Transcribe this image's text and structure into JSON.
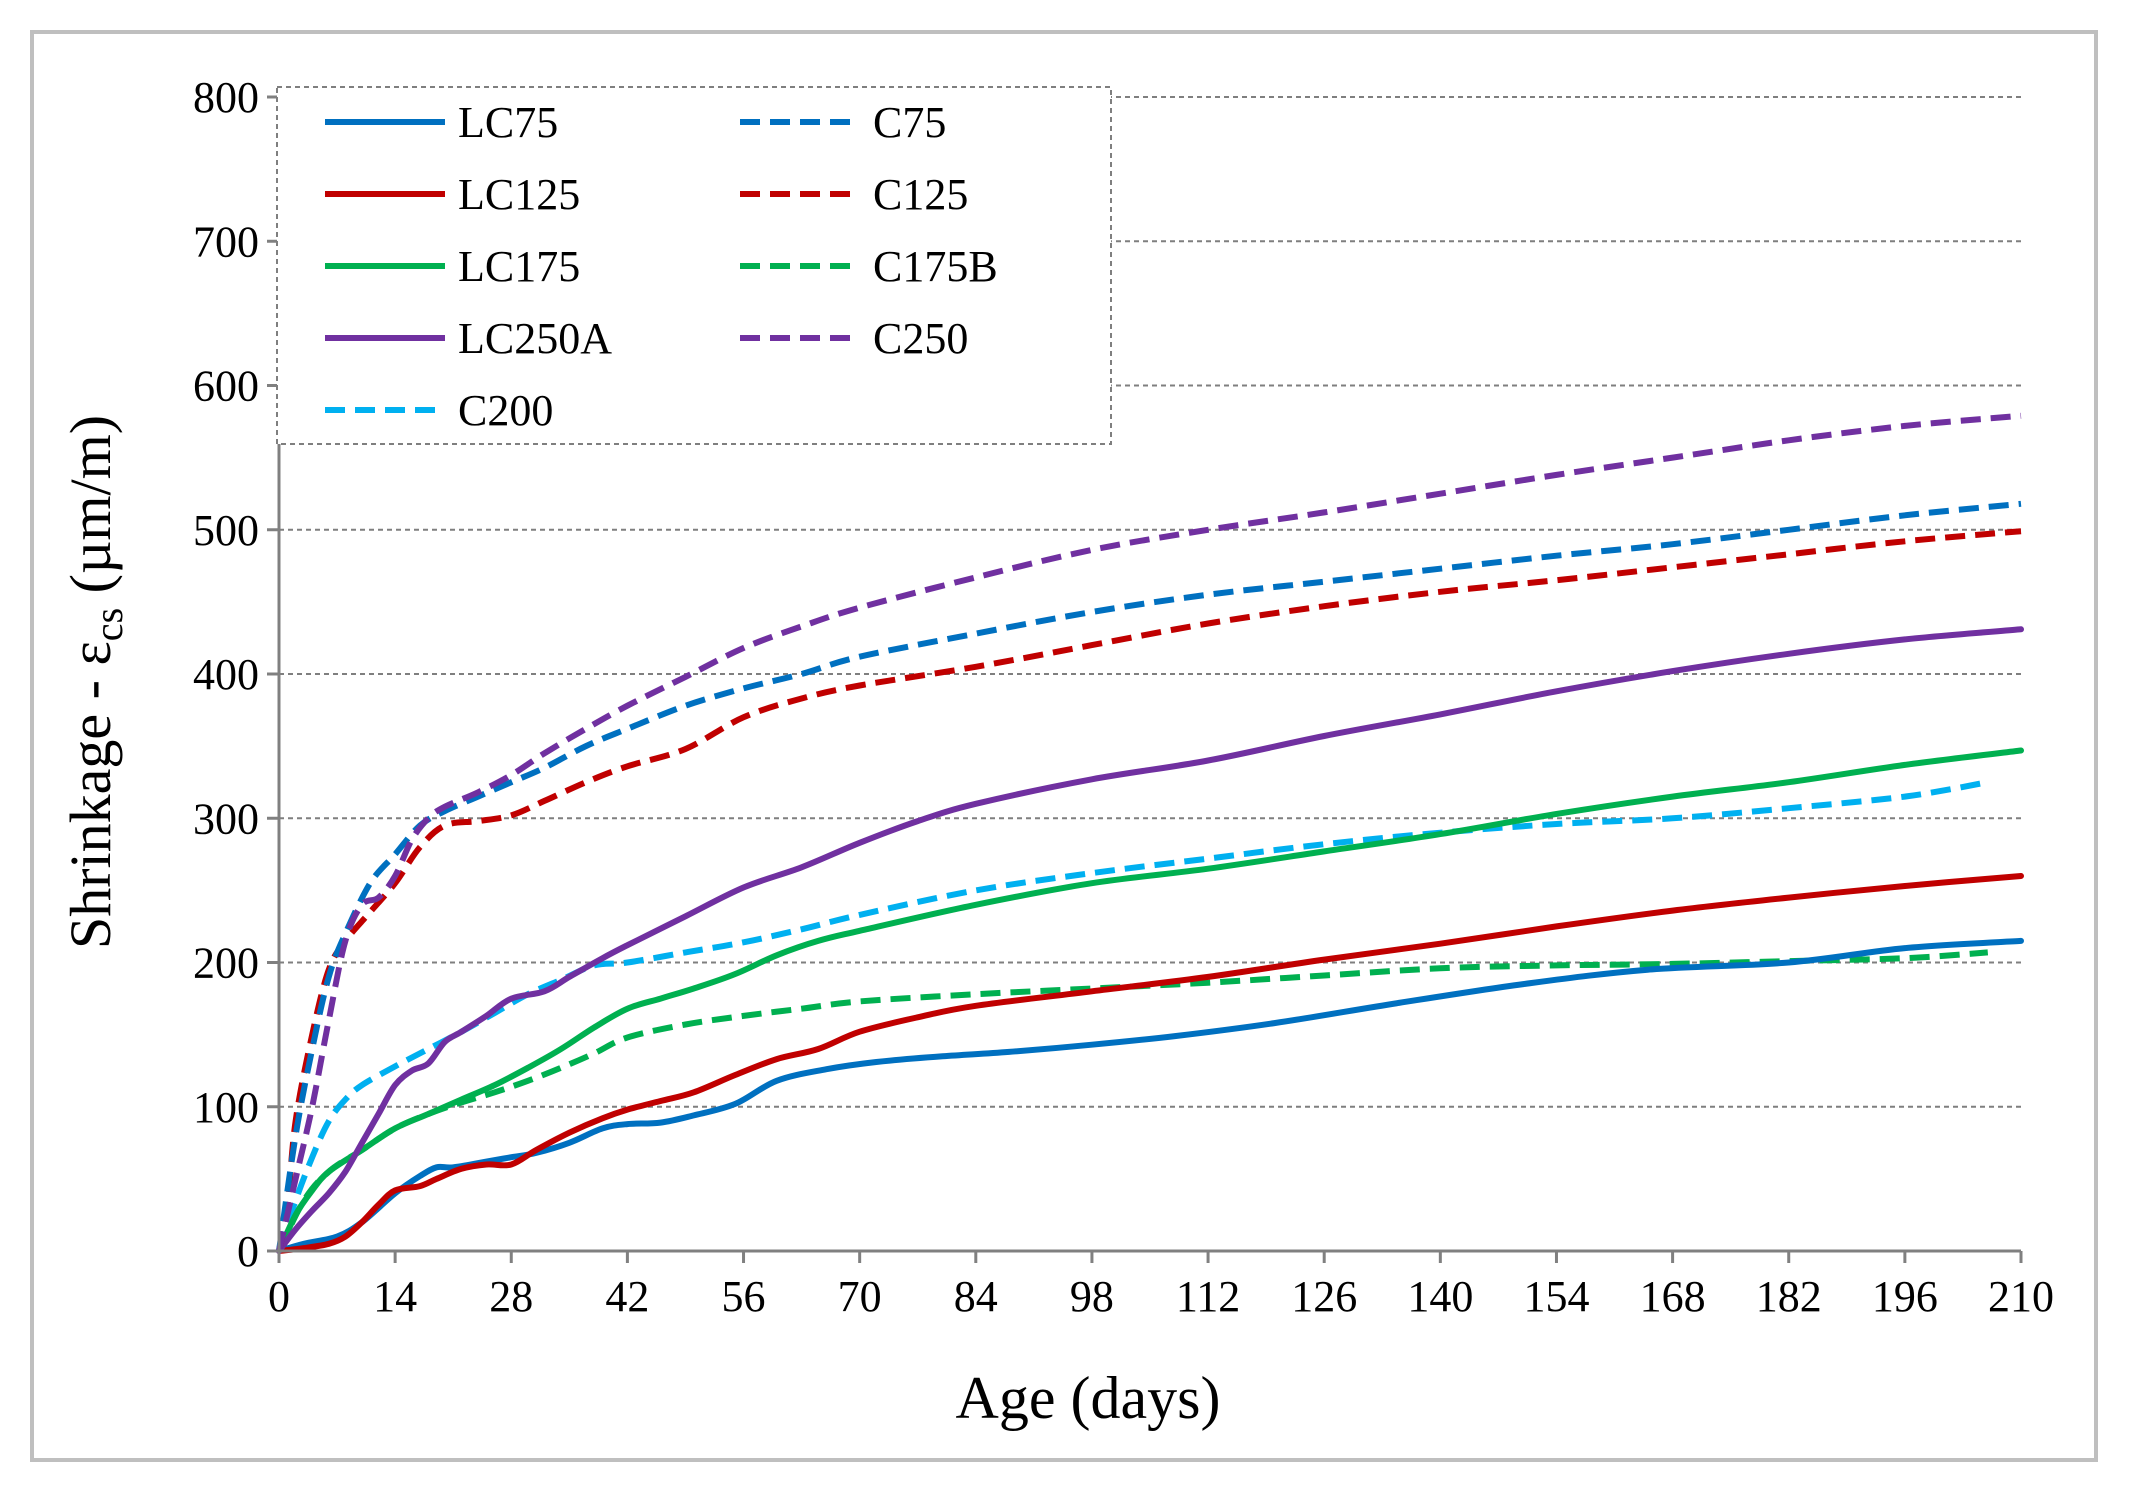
{
  "chart_data": {
    "type": "line",
    "xlabel": "Age (days)",
    "ylabel_main": "Shrinkage - ε",
    "ylabel_sub": "cs",
    "ylabel_unit": " (µm/m)",
    "xlim": [
      0,
      210
    ],
    "ylim": [
      0,
      800
    ],
    "xticks": [
      "0",
      "14",
      "28",
      "42",
      "56",
      "70",
      "84",
      "98",
      "112",
      "126",
      "140",
      "154",
      "168",
      "182",
      "196",
      "210"
    ],
    "yticks": [
      "0",
      "100",
      "200",
      "300",
      "400",
      "500",
      "600",
      "700",
      "800"
    ],
    "grid": "horizontal dashed",
    "legend_position": "top-left",
    "series": [
      {
        "name": "LC75",
        "color": "#0070c0",
        "style": "solid",
        "x": [
          0,
          3,
          7,
          10,
          14,
          17,
          19,
          21,
          25,
          28,
          31,
          35,
          39,
          42,
          46,
          50,
          55,
          60,
          66,
          72,
          80,
          88,
          98,
          108,
          120,
          135,
          150,
          165,
          182,
          196,
          210
        ],
        "y": [
          0,
          5,
          10,
          20,
          40,
          52,
          58,
          58,
          62,
          65,
          68,
          75,
          85,
          88,
          89,
          94,
          102,
          118,
          126,
          131,
          135,
          138,
          143,
          149,
          158,
          172,
          185,
          195,
          200,
          210,
          215
        ]
      },
      {
        "name": "C75",
        "color": "#0070c0",
        "style": "dashed",
        "x": [
          0,
          2,
          4,
          6,
          8,
          11,
          14,
          17,
          20,
          24,
          28,
          32,
          37,
          42,
          49,
          56,
          63,
          70,
          84,
          98,
          112,
          126,
          140,
          154,
          168,
          182,
          196,
          210
        ],
        "y": [
          0,
          80,
          140,
          190,
          220,
          255,
          275,
          295,
          305,
          315,
          325,
          335,
          350,
          362,
          378,
          390,
          400,
          412,
          428,
          443,
          455,
          464,
          473,
          482,
          490,
          500,
          510,
          518
        ]
      },
      {
        "name": "LC125",
        "color": "#c00000",
        "style": "solid",
        "x": [
          0,
          3,
          6,
          8,
          10,
          12,
          14,
          17,
          19,
          22,
          25,
          28,
          31,
          35,
          39,
          42,
          46,
          50,
          55,
          60,
          65,
          70,
          77,
          84,
          98,
          112,
          126,
          140,
          154,
          168,
          182,
          196,
          210
        ],
        "y": [
          0,
          2,
          5,
          10,
          20,
          32,
          42,
          45,
          50,
          57,
          60,
          60,
          70,
          82,
          92,
          98,
          104,
          110,
          122,
          133,
          140,
          152,
          162,
          170,
          180,
          190,
          202,
          213,
          225,
          236,
          245,
          253,
          260
        ]
      },
      {
        "name": "C125",
        "color": "#c00000",
        "style": "dashed",
        "x": [
          0,
          1,
          2,
          4,
          6,
          8,
          11,
          14,
          17,
          20,
          24,
          28,
          32,
          37,
          42,
          49,
          56,
          63,
          70,
          84,
          98,
          112,
          126,
          140,
          154,
          168,
          182,
          196,
          210
        ],
        "y": [
          0,
          30,
          90,
          150,
          195,
          215,
          235,
          255,
          280,
          295,
          298,
          302,
          312,
          325,
          336,
          348,
          370,
          383,
          392,
          405,
          420,
          435,
          447,
          457,
          465,
          474,
          483,
          492,
          499
        ]
      },
      {
        "name": "LC175",
        "color": "#00b050",
        "style": "solid",
        "x": [
          0,
          2,
          4,
          6,
          10,
          14,
          18,
          22,
          26,
          30,
          34,
          38,
          42,
          46,
          50,
          55,
          60,
          65,
          70,
          84,
          98,
          112,
          126,
          140,
          154,
          168,
          182,
          196,
          210
        ],
        "y": [
          0,
          25,
          42,
          55,
          70,
          85,
          95,
          105,
          115,
          127,
          140,
          155,
          168,
          175,
          182,
          192,
          205,
          215,
          222,
          240,
          255,
          265,
          277,
          289,
          303,
          315,
          325,
          337,
          347
        ]
      },
      {
        "name": "C175B",
        "color": "#00b050",
        "style": "dashed",
        "x": [
          0,
          3,
          6,
          10,
          14,
          18,
          22,
          26,
          30,
          34,
          38,
          42,
          49,
          56,
          63,
          70,
          84,
          98,
          112,
          126,
          140,
          154,
          168,
          182,
          196,
          206
        ],
        "y": [
          0,
          35,
          55,
          70,
          85,
          95,
          103,
          110,
          118,
          127,
          137,
          148,
          157,
          163,
          168,
          173,
          178,
          182,
          186,
          191,
          196,
          198,
          199,
          201,
          203,
          207
        ]
      },
      {
        "name": "LC250A",
        "color": "#7030a0",
        "style": "solid",
        "x": [
          0,
          2,
          4,
          6,
          8,
          10,
          12,
          14,
          16,
          18,
          20,
          22,
          25,
          28,
          32,
          35,
          39,
          42,
          49,
          56,
          63,
          70,
          77,
          84,
          98,
          112,
          126,
          140,
          154,
          168,
          182,
          196,
          210
        ],
        "y": [
          0,
          15,
          28,
          40,
          55,
          75,
          95,
          115,
          125,
          130,
          145,
          152,
          163,
          175,
          180,
          190,
          203,
          212,
          232,
          252,
          266,
          283,
          298,
          310,
          327,
          340,
          357,
          372,
          388,
          402,
          414,
          424,
          431
        ]
      },
      {
        "name": "C250",
        "color": "#7030a0",
        "style": "dashed",
        "x": [
          0,
          2,
          4,
          6,
          8,
          10,
          12,
          14,
          16,
          18,
          20,
          24,
          28,
          32,
          37,
          42,
          49,
          56,
          63,
          70,
          84,
          98,
          112,
          126,
          140,
          154,
          168,
          182,
          196,
          210
        ],
        "y": [
          0,
          50,
          100,
          160,
          215,
          240,
          245,
          260,
          285,
          300,
          308,
          318,
          330,
          345,
          362,
          378,
          398,
          418,
          433,
          446,
          467,
          486,
          500,
          512,
          525,
          538,
          550,
          562,
          572,
          579
        ]
      },
      {
        "name": "C200",
        "color": "#00b0f0",
        "style": "dashed",
        "x": [
          0,
          2,
          4,
          6,
          8,
          10,
          14,
          18,
          22,
          26,
          30,
          34,
          38,
          42,
          49,
          56,
          63,
          70,
          84,
          98,
          112,
          126,
          140,
          154,
          168,
          182,
          196,
          206
        ],
        "y": [
          0,
          35,
          65,
          90,
          105,
          115,
          128,
          140,
          152,
          165,
          178,
          188,
          198,
          200,
          207,
          214,
          223,
          233,
          250,
          262,
          272,
          282,
          290,
          296,
          300,
          307,
          315,
          325
        ]
      }
    ]
  }
}
